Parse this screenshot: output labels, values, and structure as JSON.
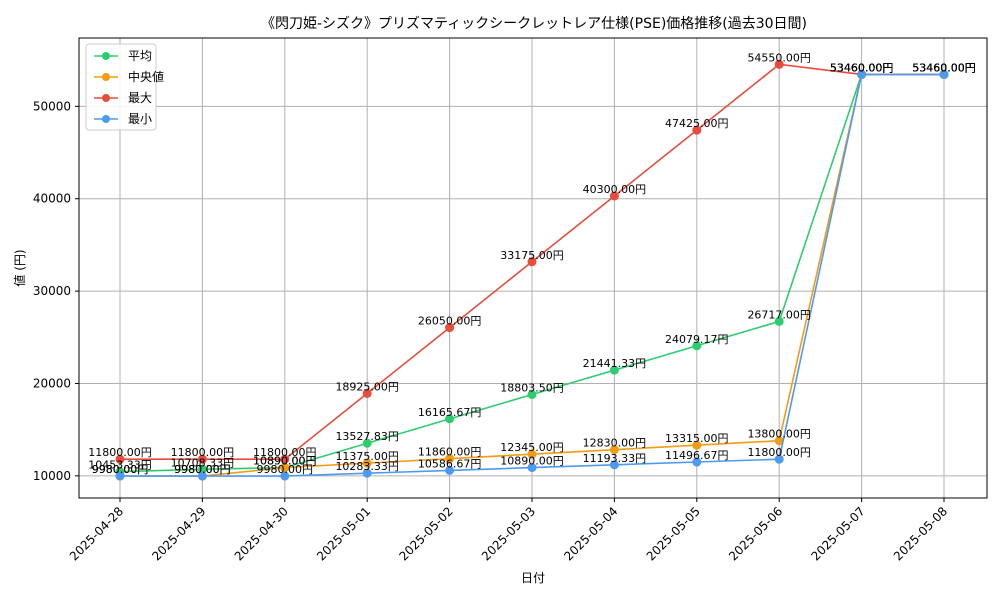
{
  "chart_data": {
    "type": "line",
    "title": "《閃刀姫-シズク》プリズマティックシークレットレア仕様(PSE)価格推移(過去30日間)",
    "xlabel": "日付",
    "ylabel": "値 (円)",
    "value_suffix": "円",
    "x": [
      "2025-04-28",
      "2025-04-29",
      "2025-04-30",
      "2025-05-01",
      "2025-05-02",
      "2025-05-03",
      "2025-05-04",
      "2025-05-05",
      "2025-05-06",
      "2025-05-07",
      "2025-05-08"
    ],
    "ylim": [
      7600,
      57400
    ],
    "yticks": [
      10000,
      20000,
      30000,
      40000,
      50000
    ],
    "grid": true,
    "legend_position": "top-left",
    "series": [
      {
        "name": "平均",
        "color": "#2ecc71",
        "values": [
          10453.33,
          10708.33,
          10890,
          13527.83,
          16165.67,
          18803.5,
          21441.33,
          24079.17,
          26717,
          53460,
          53460
        ],
        "labels": [
          "10453.33円",
          "10708.33円",
          "10890.00円",
          "13527.83円",
          "16165.67円",
          "18803.50円",
          "21441.33円",
          "24079.17円",
          "26717.00円",
          "53460.00円",
          "53460.00円"
        ]
      },
      {
        "name": "中央値",
        "color": "#f39c12",
        "values": [
          9980,
          9980,
          10890,
          11375,
          11860,
          12345,
          12830,
          13315,
          13800,
          53460,
          53460
        ],
        "labels": [
          "9980.00円",
          "9980.00円",
          "10890.00円",
          "11375.00円",
          "11860.00円",
          "12345.00円",
          "12830.00円",
          "13315.00円",
          "13800.00円",
          "53460.00円",
          "53460.00円"
        ]
      },
      {
        "name": "最大",
        "color": "#e74c3c",
        "values": [
          11800,
          11800,
          11800,
          18925,
          26050,
          33175,
          40300,
          47425,
          54550,
          53460,
          53460
        ],
        "labels": [
          "11800.00円",
          "11800.00円",
          "11800.00円",
          "18925.00円",
          "26050.00円",
          "33175.00円",
          "40300.00円",
          "47425.00円",
          "54550.00円",
          "53460.00円",
          "53460.00円"
        ]
      },
      {
        "name": "最小",
        "color": "#4e9af1",
        "values": [
          9980,
          9980,
          9980,
          10283.33,
          10586.67,
          10890,
          11193.33,
          11496.67,
          11800,
          53460,
          53460
        ],
        "labels": [
          "9980.00円",
          "9980.00円",
          "9980.00円",
          "10283.33円",
          "10586.67円",
          "10890.00円",
          "11193.33円",
          "11496.67円",
          "11800.00円",
          "53460.00円",
          "53460.00円"
        ]
      }
    ]
  }
}
